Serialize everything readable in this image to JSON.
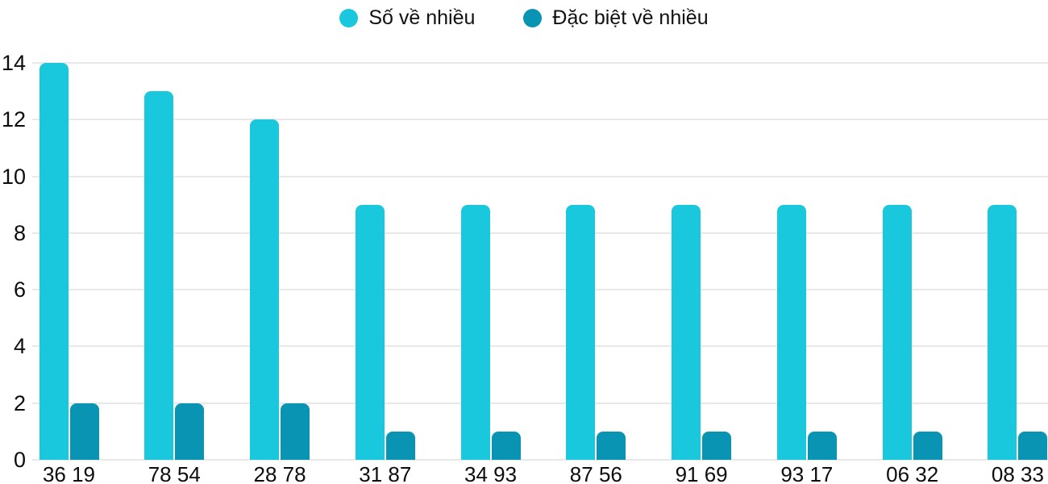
{
  "chart_data": {
    "type": "bar",
    "title": "",
    "xlabel": "",
    "ylabel": "",
    "categories": [
      "36 19",
      "78 54",
      "28 78",
      "31 87",
      "34 93",
      "87 56",
      "91 69",
      "93 17",
      "06 32",
      "08 33"
    ],
    "series": [
      {
        "name": "Số về nhiều",
        "color": "#19c8dc",
        "values": [
          14,
          13,
          12,
          9,
          9,
          9,
          9,
          9,
          9,
          9
        ]
      },
      {
        "name": "Đặc biệt về nhiều",
        "color": "#0a94b4",
        "values": [
          2,
          2,
          2,
          1,
          1,
          1,
          1,
          1,
          1,
          1
        ]
      }
    ],
    "ylim": [
      0,
      14
    ],
    "yticks": [
      0,
      2,
      4,
      6,
      8,
      10,
      12,
      14
    ],
    "grid": true,
    "legend_position": "top-center",
    "gridline_color": "#e8e8e8",
    "text_color": "#0d0d0d"
  }
}
